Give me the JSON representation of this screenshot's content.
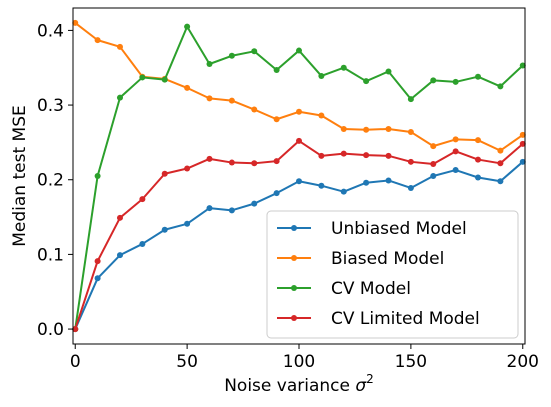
{
  "chart_data": {
    "type": "line",
    "title": "",
    "xlabel": "Noise variance σ²",
    "xlabel_main": "Noise variance ",
    "xlabel_symbol": "σ",
    "xlabel_sup": "2",
    "ylabel": "Median test MSE",
    "xlim": [
      -1,
      201
    ],
    "ylim": [
      -0.02,
      0.43
    ],
    "x_ticks": [
      0,
      50,
      100,
      150,
      200
    ],
    "x_tick_labels": [
      "0",
      "50",
      "100",
      "150",
      "200"
    ],
    "y_ticks": [
      0.0,
      0.1,
      0.2,
      0.3,
      0.4
    ],
    "y_tick_labels": [
      "0.0",
      "0.1",
      "0.2",
      "0.3",
      "0.4"
    ],
    "grid": false,
    "legend_position": "lower-right",
    "x": [
      0,
      10,
      20,
      30,
      40,
      50,
      60,
      70,
      80,
      90,
      100,
      110,
      120,
      130,
      140,
      150,
      160,
      170,
      180,
      190,
      200
    ],
    "series": [
      {
        "name": "Unbiased Model",
        "color": "#1f77b4",
        "values": [
          0.0,
          0.068,
          0.099,
          0.114,
          0.133,
          0.141,
          0.162,
          0.159,
          0.168,
          0.182,
          0.198,
          0.192,
          0.184,
          0.196,
          0.199,
          0.189,
          0.205,
          0.213,
          0.203,
          0.198,
          0.224
        ]
      },
      {
        "name": "Biased Model",
        "color": "#ff7f0e",
        "values": [
          0.41,
          0.387,
          0.378,
          0.338,
          0.335,
          0.323,
          0.309,
          0.306,
          0.294,
          0.281,
          0.291,
          0.286,
          0.268,
          0.267,
          0.268,
          0.264,
          0.245,
          0.254,
          0.253,
          0.239,
          0.26
        ]
      },
      {
        "name": "CV Model",
        "color": "#2ca02c",
        "values": [
          0.0,
          0.205,
          0.31,
          0.337,
          0.334,
          0.405,
          0.355,
          0.366,
          0.372,
          0.347,
          0.373,
          0.339,
          0.35,
          0.332,
          0.345,
          0.308,
          0.333,
          0.331,
          0.338,
          0.325,
          0.353
        ]
      },
      {
        "name": "CV Limited Model",
        "color": "#d62728",
        "values": [
          0.0,
          0.091,
          0.149,
          0.174,
          0.208,
          0.215,
          0.228,
          0.223,
          0.222,
          0.225,
          0.252,
          0.232,
          0.235,
          0.233,
          0.232,
          0.224,
          0.221,
          0.238,
          0.227,
          0.222,
          0.248
        ]
      }
    ]
  }
}
